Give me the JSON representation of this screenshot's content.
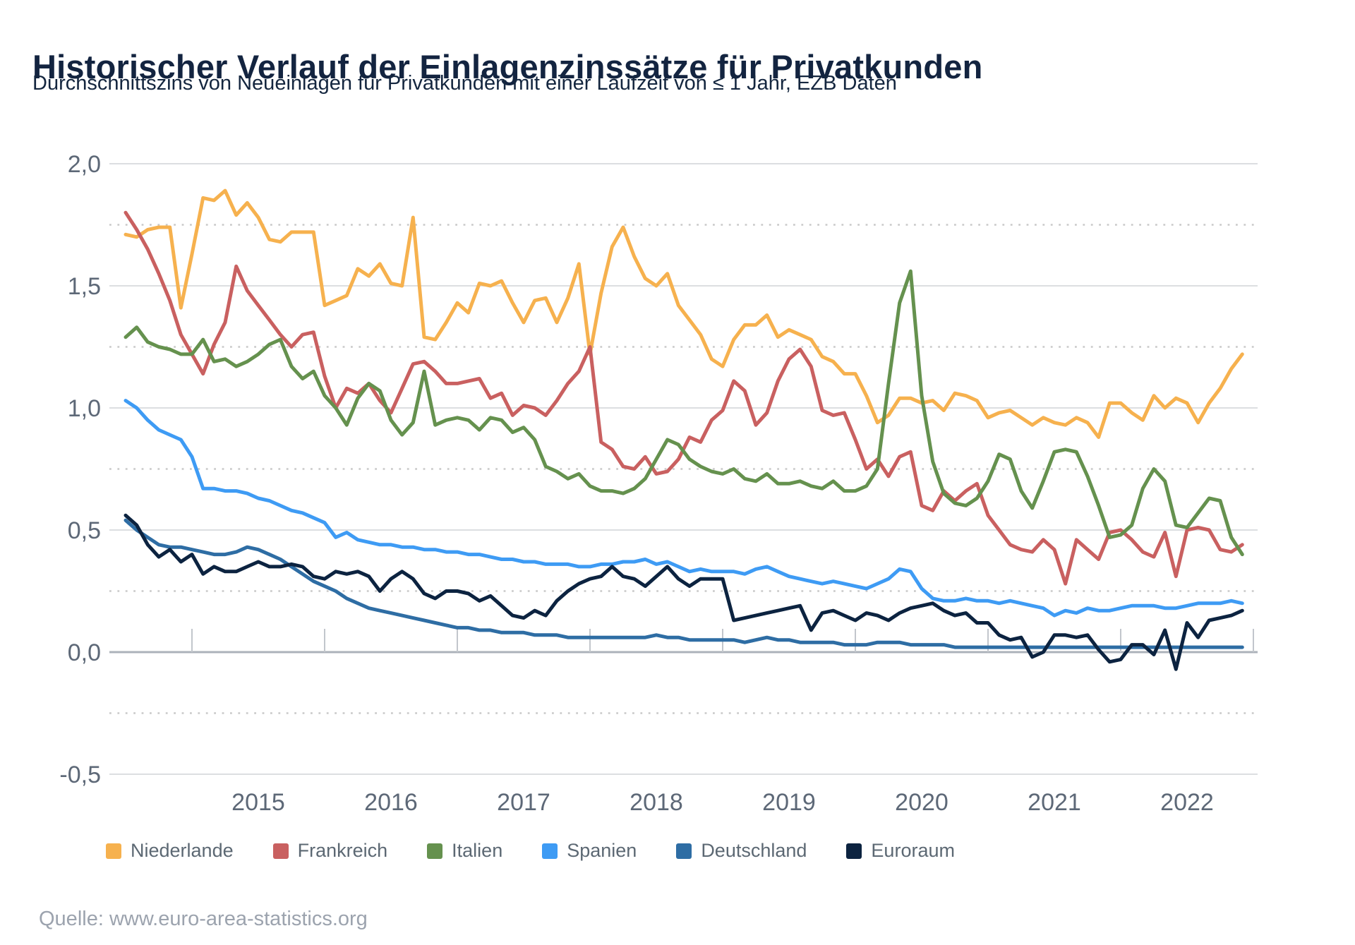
{
  "header": {
    "title": "Historischer Verlauf der Einlagenzinssätze für Privatkunden",
    "subtitle": "Durchschnittszins von Neueinlagen für Privatkunden mit einer Laufzeit von ≤ 1 Jahr, EZB Daten"
  },
  "source": {
    "label": "Quelle: www.euro-area-statistics.org"
  },
  "chart_data": {
    "type": "line",
    "title": "Historischer Verlauf der Einlagenzinssätze für Privatkunden",
    "subtitle": "Durchschnittszins von Neueinlagen für Privatkunden mit einer Laufzeit von ≤ 1 Jahr, EZB Daten",
    "x_start": "2014-07",
    "x_end": "2022-12",
    "x_frequency": "monthly",
    "x_year_labels": [
      "2015",
      "2016",
      "2017",
      "2018",
      "2019",
      "2020",
      "2021",
      "2022"
    ],
    "ylim": [
      -0.5,
      2.0
    ],
    "y_major_ticks": [
      2.0,
      1.5,
      1.0,
      0.5,
      0.0,
      -0.5
    ],
    "y_major_tick_labels": [
      "2,0",
      "1,5",
      "1,0",
      "0,5",
      "0,0",
      "-0,5"
    ],
    "y_minor_ticks": [
      1.75,
      1.25,
      0.75,
      0.25,
      -0.25
    ],
    "grid": "horizontal, solid at 0.5 steps, dotted at 0.25 steps",
    "legend_position": "bottom",
    "unit": "percent",
    "series": [
      {
        "name": "Niederlande",
        "color": "#F6B14E",
        "values": [
          1.71,
          1.7,
          1.73,
          1.74,
          1.74,
          1.41,
          1.63,
          1.86,
          1.85,
          1.89,
          1.79,
          1.84,
          1.78,
          1.69,
          1.68,
          1.72,
          1.72,
          1.72,
          1.42,
          1.44,
          1.46,
          1.57,
          1.54,
          1.59,
          1.51,
          1.5,
          1.78,
          1.29,
          1.28,
          1.35,
          1.43,
          1.39,
          1.51,
          1.5,
          1.52,
          1.43,
          1.35,
          1.44,
          1.45,
          1.35,
          1.45,
          1.59,
          1.22,
          1.47,
          1.66,
          1.74,
          1.62,
          1.53,
          1.5,
          1.55,
          1.42,
          1.36,
          1.3,
          1.2,
          1.17,
          1.28,
          1.34,
          1.34,
          1.38,
          1.29,
          1.32,
          1.3,
          1.28,
          1.21,
          1.19,
          1.14,
          1.14,
          1.05,
          0.94,
          0.97,
          1.04,
          1.04,
          1.02,
          1.03,
          0.99,
          1.06,
          1.05,
          1.03,
          0.96,
          0.98,
          0.99,
          0.96,
          0.93,
          0.96,
          0.94,
          0.93,
          0.96,
          0.94,
          0.88,
          1.02,
          1.02,
          0.98,
          0.95,
          1.05,
          1.0,
          1.04,
          1.02,
          0.94,
          1.02,
          1.08,
          1.16,
          1.22
        ]
      },
      {
        "name": "Frankreich",
        "color": "#C96060",
        "values": [
          1.8,
          1.73,
          1.65,
          1.55,
          1.44,
          1.3,
          1.22,
          1.14,
          1.26,
          1.35,
          1.58,
          1.48,
          1.42,
          1.36,
          1.3,
          1.25,
          1.3,
          1.31,
          1.13,
          1.0,
          1.08,
          1.06,
          1.1,
          1.03,
          0.98,
          1.08,
          1.18,
          1.19,
          1.15,
          1.1,
          1.1,
          1.11,
          1.12,
          1.04,
          1.06,
          0.97,
          1.01,
          1.0,
          0.97,
          1.03,
          1.1,
          1.15,
          1.25,
          0.86,
          0.83,
          0.76,
          0.75,
          0.8,
          0.73,
          0.74,
          0.79,
          0.88,
          0.86,
          0.95,
          0.99,
          1.11,
          1.07,
          0.93,
          0.98,
          1.11,
          1.2,
          1.24,
          1.17,
          0.99,
          0.97,
          0.98,
          0.87,
          0.75,
          0.79,
          0.72,
          0.8,
          0.82,
          0.6,
          0.58,
          0.66,
          0.62,
          0.66,
          0.69,
          0.56,
          0.5,
          0.44,
          0.42,
          0.41,
          0.46,
          0.42,
          0.28,
          0.46,
          0.42,
          0.38,
          0.49,
          0.5,
          0.46,
          0.41,
          0.39,
          0.49,
          0.31,
          0.5,
          0.51,
          0.5,
          0.42,
          0.41,
          0.44
        ]
      },
      {
        "name": "Italien",
        "color": "#65914E",
        "values": [
          1.29,
          1.33,
          1.27,
          1.25,
          1.24,
          1.22,
          1.22,
          1.28,
          1.19,
          1.2,
          1.17,
          1.19,
          1.22,
          1.26,
          1.28,
          1.17,
          1.12,
          1.15,
          1.05,
          1.0,
          0.93,
          1.04,
          1.1,
          1.07,
          0.95,
          0.89,
          0.94,
          1.15,
          0.93,
          0.95,
          0.96,
          0.95,
          0.91,
          0.96,
          0.95,
          0.9,
          0.92,
          0.87,
          0.76,
          0.74,
          0.71,
          0.73,
          0.68,
          0.66,
          0.66,
          0.65,
          0.67,
          0.71,
          0.79,
          0.87,
          0.85,
          0.79,
          0.76,
          0.74,
          0.73,
          0.75,
          0.71,
          0.7,
          0.73,
          0.69,
          0.69,
          0.7,
          0.68,
          0.67,
          0.7,
          0.66,
          0.66,
          0.68,
          0.75,
          1.1,
          1.43,
          1.56,
          1.05,
          0.78,
          0.65,
          0.61,
          0.6,
          0.63,
          0.7,
          0.81,
          0.79,
          0.66,
          0.59,
          0.7,
          0.82,
          0.83,
          0.82,
          0.72,
          0.6,
          0.47,
          0.48,
          0.52,
          0.67,
          0.75,
          0.7,
          0.52,
          0.51,
          0.57,
          0.63,
          0.62,
          0.47,
          0.4
        ]
      },
      {
        "name": "Spanien",
        "color": "#3E9BF4",
        "values": [
          1.03,
          1.0,
          0.95,
          0.91,
          0.89,
          0.87,
          0.8,
          0.67,
          0.67,
          0.66,
          0.66,
          0.65,
          0.63,
          0.62,
          0.6,
          0.58,
          0.57,
          0.55,
          0.53,
          0.47,
          0.49,
          0.46,
          0.45,
          0.44,
          0.44,
          0.43,
          0.43,
          0.42,
          0.42,
          0.41,
          0.41,
          0.4,
          0.4,
          0.39,
          0.38,
          0.38,
          0.37,
          0.37,
          0.36,
          0.36,
          0.36,
          0.35,
          0.35,
          0.36,
          0.36,
          0.37,
          0.37,
          0.38,
          0.36,
          0.37,
          0.35,
          0.33,
          0.34,
          0.33,
          0.33,
          0.33,
          0.32,
          0.34,
          0.35,
          0.33,
          0.31,
          0.3,
          0.29,
          0.28,
          0.29,
          0.28,
          0.27,
          0.26,
          0.28,
          0.3,
          0.34,
          0.33,
          0.26,
          0.22,
          0.21,
          0.21,
          0.22,
          0.21,
          0.21,
          0.2,
          0.21,
          0.2,
          0.19,
          0.18,
          0.15,
          0.17,
          0.16,
          0.18,
          0.17,
          0.17,
          0.18,
          0.19,
          0.19,
          0.19,
          0.18,
          0.18,
          0.19,
          0.2,
          0.2,
          0.2,
          0.21,
          0.2
        ]
      },
      {
        "name": "Deutschland",
        "color": "#2E6DA4",
        "values": [
          0.54,
          0.5,
          0.47,
          0.44,
          0.43,
          0.43,
          0.42,
          0.41,
          0.4,
          0.4,
          0.41,
          0.43,
          0.42,
          0.4,
          0.38,
          0.35,
          0.32,
          0.29,
          0.27,
          0.25,
          0.22,
          0.2,
          0.18,
          0.17,
          0.16,
          0.15,
          0.14,
          0.13,
          0.12,
          0.11,
          0.1,
          0.1,
          0.09,
          0.09,
          0.08,
          0.08,
          0.08,
          0.07,
          0.07,
          0.07,
          0.06,
          0.06,
          0.06,
          0.06,
          0.06,
          0.06,
          0.06,
          0.06,
          0.07,
          0.06,
          0.06,
          0.05,
          0.05,
          0.05,
          0.05,
          0.05,
          0.04,
          0.05,
          0.06,
          0.05,
          0.05,
          0.04,
          0.04,
          0.04,
          0.04,
          0.03,
          0.03,
          0.03,
          0.04,
          0.04,
          0.04,
          0.03,
          0.03,
          0.03,
          0.03,
          0.02,
          0.02,
          0.02,
          0.02,
          0.02,
          0.02,
          0.02,
          0.02,
          0.02,
          0.02,
          0.02,
          0.02,
          0.02,
          0.02,
          0.02,
          0.02,
          0.02,
          0.02,
          0.02,
          0.02,
          0.02,
          0.02,
          0.02,
          0.02,
          0.02,
          0.02,
          0.02
        ]
      },
      {
        "name": "Euroraum",
        "color": "#0C2340",
        "values": [
          0.56,
          0.52,
          0.44,
          0.39,
          0.42,
          0.37,
          0.4,
          0.32,
          0.35,
          0.33,
          0.33,
          0.35,
          0.37,
          0.35,
          0.35,
          0.36,
          0.35,
          0.31,
          0.3,
          0.33,
          0.32,
          0.33,
          0.31,
          0.25,
          0.3,
          0.33,
          0.3,
          0.24,
          0.22,
          0.25,
          0.25,
          0.24,
          0.21,
          0.23,
          0.19,
          0.15,
          0.14,
          0.17,
          0.15,
          0.21,
          0.25,
          0.28,
          0.3,
          0.31,
          0.35,
          0.31,
          0.3,
          0.27,
          0.31,
          0.35,
          0.3,
          0.27,
          0.3,
          0.3,
          0.3,
          0.13,
          0.14,
          0.15,
          0.16,
          0.17,
          0.18,
          0.19,
          0.09,
          0.16,
          0.17,
          0.15,
          0.13,
          0.16,
          0.15,
          0.13,
          0.16,
          0.18,
          0.19,
          0.2,
          0.17,
          0.15,
          0.16,
          0.12,
          0.12,
          0.07,
          0.05,
          0.06,
          -0.02,
          0.0,
          0.07,
          0.07,
          0.06,
          0.07,
          0.01,
          -0.04,
          -0.03,
          0.03,
          0.03,
          -0.01,
          0.09,
          -0.07,
          0.12,
          0.06,
          0.13,
          0.14,
          0.15,
          0.17
        ]
      }
    ]
  }
}
